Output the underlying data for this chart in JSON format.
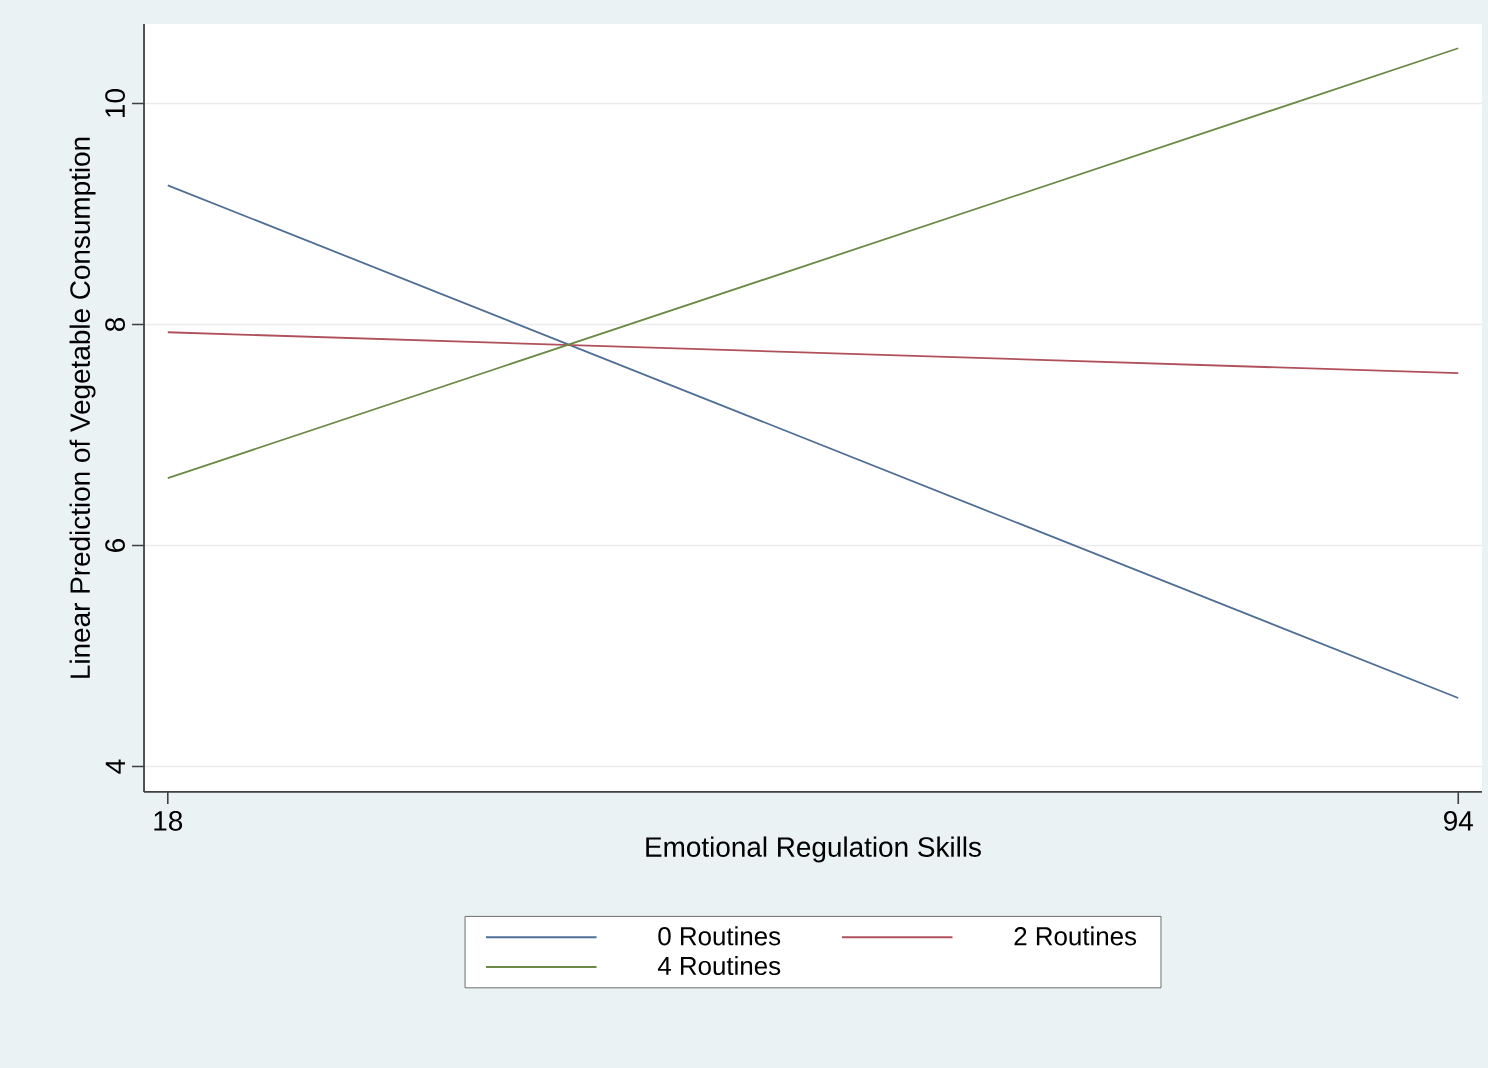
{
  "chart_data": {
    "type": "line",
    "xlabel": "Emotional Regulation Skills",
    "ylabel": "Linear Prediction of Vegetable Consumption",
    "x": [
      18,
      94
    ],
    "series": [
      {
        "name": "0 Routines",
        "color": "#4f6e96",
        "values": [
          9.26,
          4.62
        ]
      },
      {
        "name": "2 Routines",
        "color": "#b0505a",
        "values": [
          7.93,
          7.56
        ]
      },
      {
        "name": "4 Routines",
        "color": "#6b8a45",
        "values": [
          6.61,
          10.5
        ]
      }
    ],
    "xlim": [
      16.6,
      95.4
    ],
    "ylim": [
      3.77,
      10.72
    ],
    "xticks": [
      18,
      94
    ],
    "yticks": [
      4,
      6,
      8,
      10
    ],
    "grid": "y",
    "legend": "bottom",
    "marker": "none",
    "line_style": "solid"
  }
}
